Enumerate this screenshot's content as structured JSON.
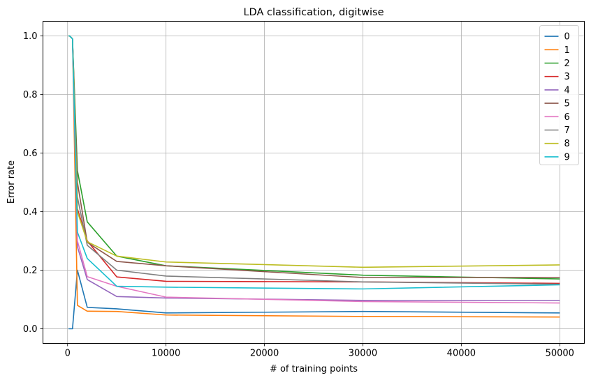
{
  "chart_data": {
    "type": "line",
    "title": "LDA classification, digitwise",
    "xlabel": "# of training points",
    "ylabel": "Error rate",
    "xlim": [
      -2500,
      52500
    ],
    "ylim": [
      -0.05,
      1.05
    ],
    "xticks": [
      0,
      10000,
      20000,
      30000,
      40000,
      50000
    ],
    "xtick_labels": [
      "0",
      "10000",
      "20000",
      "30000",
      "40000",
      "50000"
    ],
    "yticks": [
      0.0,
      0.2,
      0.4,
      0.6,
      0.8,
      1.0
    ],
    "ytick_labels": [
      "0.0",
      "0.2",
      "0.4",
      "0.6",
      "0.8",
      "1.0"
    ],
    "grid": true,
    "legend_position": "top-right",
    "x": [
      100,
      200,
      500,
      1000,
      2000,
      5000,
      10000,
      30000,
      50000
    ],
    "series": [
      {
        "name": "0",
        "color": "#1f77b4",
        "values": [
          0.0,
          0.0,
          0.0,
          0.2,
          0.073,
          0.068,
          0.054,
          0.059,
          0.054
        ]
      },
      {
        "name": "1",
        "color": "#ff7f0e",
        "values": [
          1.0,
          1.0,
          0.99,
          0.08,
          0.06,
          0.059,
          0.047,
          0.042,
          0.04
        ]
      },
      {
        "name": "2",
        "color": "#2ca02c",
        "values": [
          1.0,
          1.0,
          0.99,
          0.54,
          0.365,
          0.248,
          0.215,
          0.183,
          0.17
        ]
      },
      {
        "name": "3",
        "color": "#d62728",
        "values": [
          1.0,
          1.0,
          0.99,
          0.41,
          0.3,
          0.177,
          0.162,
          0.16,
          0.155
        ]
      },
      {
        "name": "4",
        "color": "#9467bd",
        "values": [
          1.0,
          1.0,
          0.99,
          0.28,
          0.168,
          0.11,
          0.105,
          0.097,
          0.097
        ]
      },
      {
        "name": "5",
        "color": "#8c564b",
        "values": [
          1.0,
          1.0,
          0.99,
          0.5,
          0.295,
          0.23,
          0.215,
          0.175,
          0.175
        ]
      },
      {
        "name": "6",
        "color": "#e377c2",
        "values": [
          1.0,
          1.0,
          0.99,
          0.3,
          0.178,
          0.145,
          0.108,
          0.093,
          0.088
        ]
      },
      {
        "name": "7",
        "color": "#7f7f7f",
        "values": [
          1.0,
          1.0,
          0.99,
          0.45,
          0.285,
          0.2,
          0.18,
          0.16,
          0.152
        ]
      },
      {
        "name": "8",
        "color": "#bcbd22",
        "values": [
          1.0,
          1.0,
          0.99,
          0.4,
          0.297,
          0.248,
          0.228,
          0.21,
          0.218
        ]
      },
      {
        "name": "9",
        "color": "#17becf",
        "values": [
          1.0,
          1.0,
          0.99,
          0.33,
          0.24,
          0.145,
          0.142,
          0.136,
          0.15
        ]
      }
    ]
  }
}
